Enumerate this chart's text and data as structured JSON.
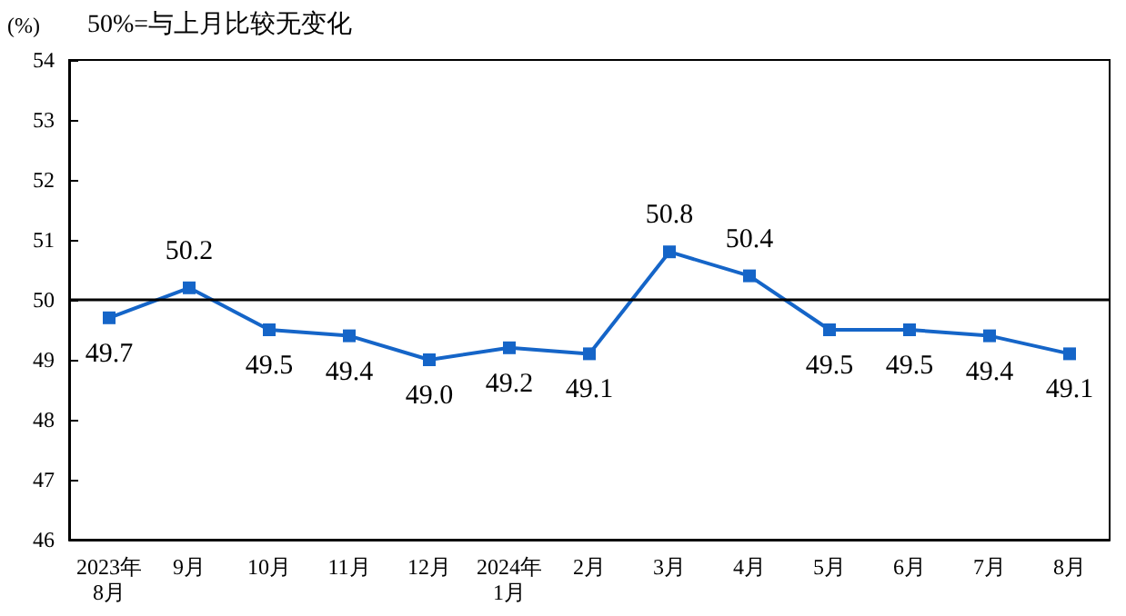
{
  "chart_data": {
    "type": "line",
    "ylabel": "(%)",
    "annotations": [
      "50%=与上月比较无变化"
    ],
    "categories": [
      "2023年\n8月",
      "9月",
      "10月",
      "11月",
      "12月",
      "2024年\n1月",
      "2月",
      "3月",
      "4月",
      "5月",
      "6月",
      "7月",
      "8月"
    ],
    "series": [
      {
        "color": "#1565c8",
        "values": [
          49.7,
          50.2,
          49.5,
          49.4,
          49.0,
          49.2,
          49.1,
          50.8,
          50.4,
          49.5,
          49.5,
          49.4,
          49.1
        ],
        "value_labels": [
          "49.7",
          "50.2",
          "49.5",
          "49.4",
          "49.0",
          "49.2",
          "49.1",
          "50.8",
          "50.4",
          "49.5",
          "49.5",
          "49.4",
          "49.1"
        ]
      }
    ],
    "ylim": [
      46,
      54
    ],
    "yticks": [
      46,
      47,
      48,
      49,
      50,
      51,
      52,
      53,
      54
    ],
    "ref_lines": [
      {
        "axis": "y",
        "value": 50,
        "color": "#000000"
      }
    ],
    "grid": false,
    "marker": "square",
    "line_style": "solid"
  }
}
